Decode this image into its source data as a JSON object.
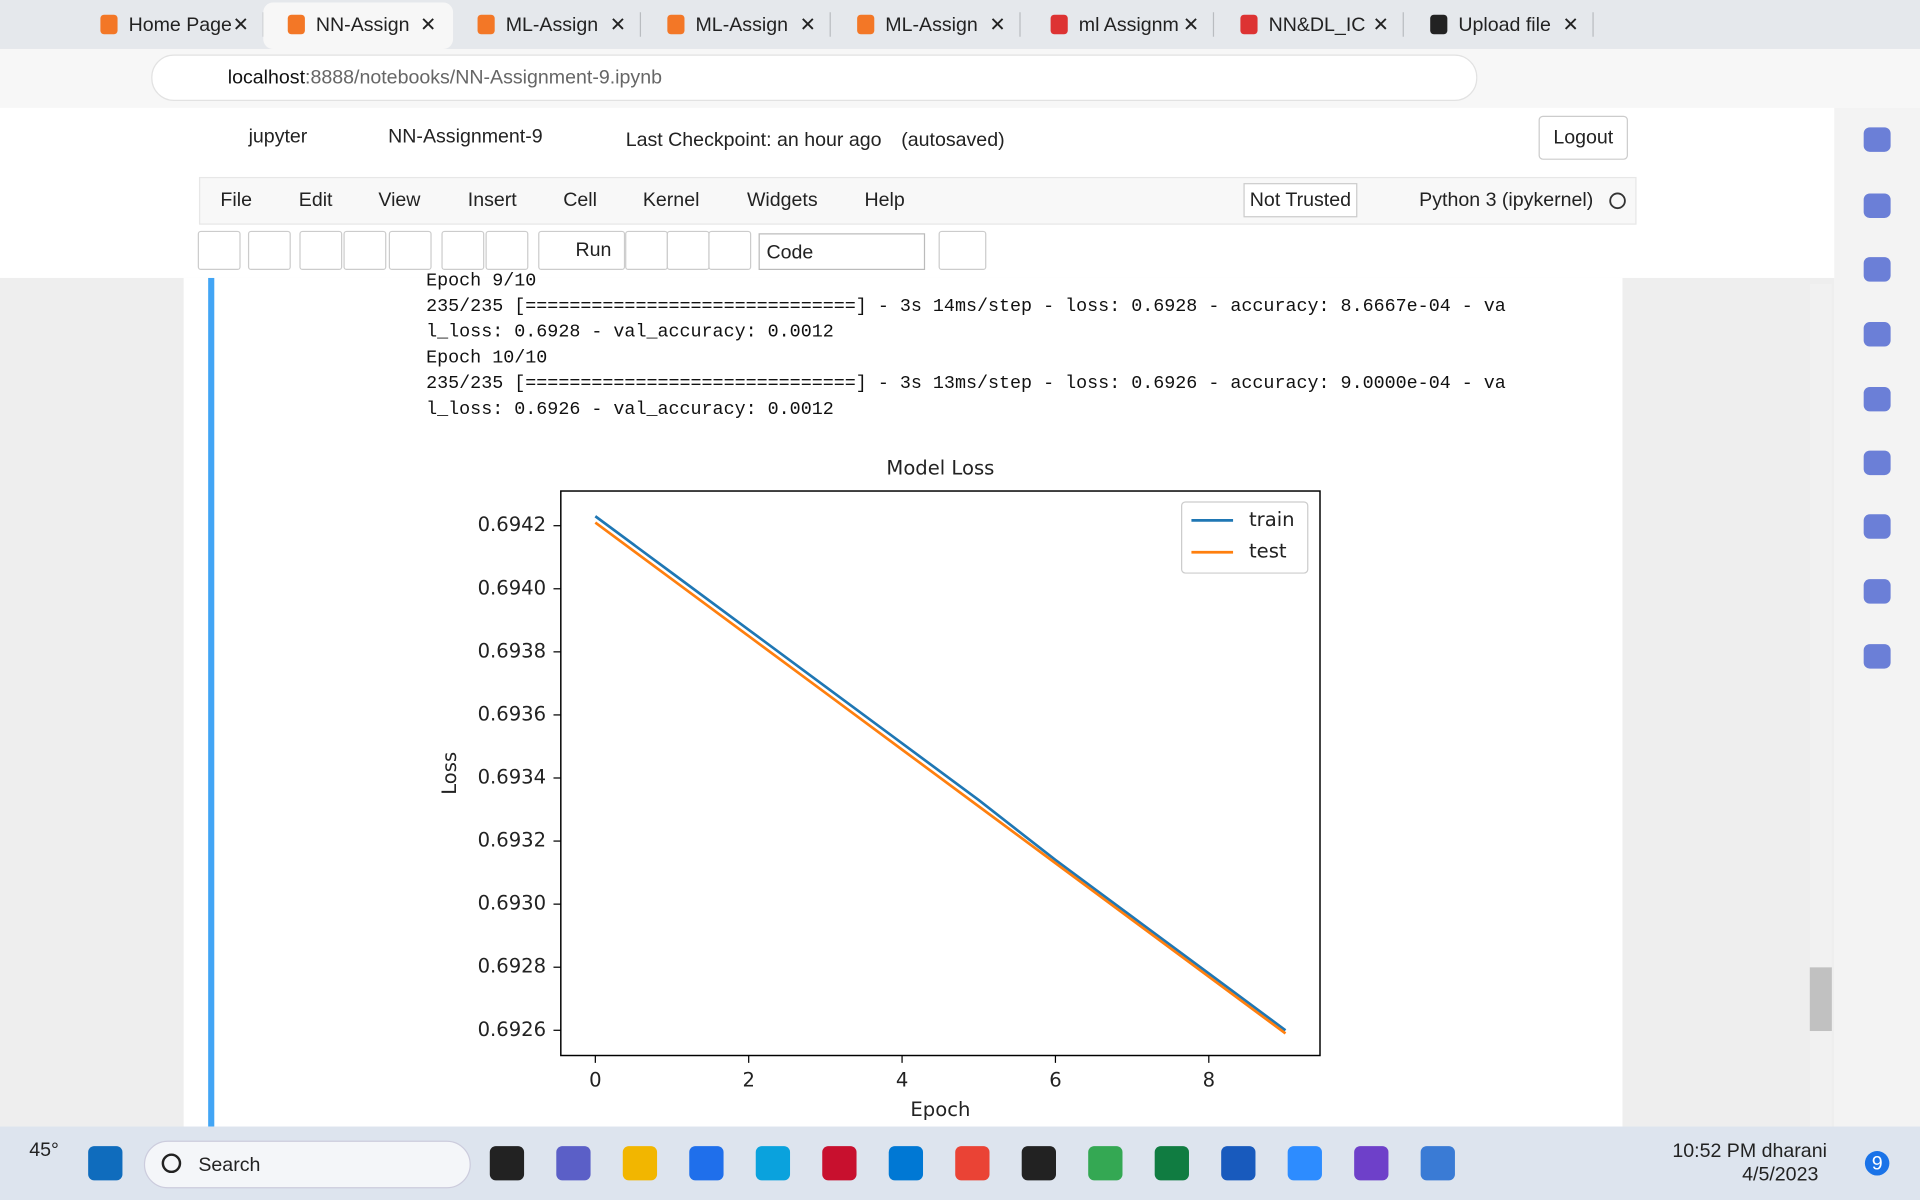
{
  "browser": {
    "tabs": [
      "Home Page",
      "NN-Assign",
      "ML-Assign",
      "ML-Assign",
      "ML-Assign",
      "ml Assignm",
      "NN&DL_IC",
      "Upload file"
    ],
    "url_host": "localhost",
    "url_path": ":8888/notebooks/NN-Assignment-9.ipynb"
  },
  "notebook": {
    "logo": "jupyter",
    "name": "NN-Assignment-9",
    "checkpoint": "Last Checkpoint: an hour ago",
    "autosave": "(autosaved)",
    "logout": "Logout",
    "menu": [
      "File",
      "Edit",
      "View",
      "Insert",
      "Cell",
      "Kernel",
      "Widgets",
      "Help"
    ],
    "trusted": "Not Trusted",
    "kernel": "Python 3 (ipykernel)",
    "run": "Run",
    "cell_type": "Code",
    "output": [
      "Epoch 9/10",
      "235/235 [==============================] - 3s 14ms/step - loss: 0.6928 - accuracy: 8.6667e-04 - va",
      "l_loss: 0.6928 - val_accuracy: 0.0012",
      "Epoch 10/10",
      "235/235 [==============================] - 3s 13ms/step - loss: 0.6926 - accuracy: 9.0000e-04 - va",
      "l_loss: 0.6926 - val_accuracy: 0.0012"
    ]
  },
  "chart_data": {
    "type": "line",
    "title": "Model Loss",
    "x_label": "Epoch",
    "y_label": "Loss",
    "x": [
      0,
      1,
      2,
      3,
      4,
      5,
      6,
      7,
      8,
      9
    ],
    "series": [
      {
        "name": "train",
        "color": "#1f77b4",
        "values": [
          0.69423,
          0.69405,
          0.69387,
          0.69369,
          0.69351,
          0.69333,
          0.69314,
          0.69296,
          0.69278,
          0.6926
        ]
      },
      {
        "name": "test",
        "color": "#ff7f0e",
        "values": [
          0.69421,
          0.69403,
          0.69385,
          0.69367,
          0.69349,
          0.69331,
          0.69313,
          0.69295,
          0.69277,
          0.69259
        ]
      }
    ],
    "xlim": [
      -0.45,
      9.45
    ],
    "ylim": [
      0.69252,
      0.69431
    ],
    "xticks": [
      0,
      2,
      4,
      6,
      8
    ],
    "yticks": [
      0.6926,
      0.6928,
      {
        "value": 0.693,
        "label": "0.6930"
      },
      0.6932,
      0.6934,
      0.6936,
      0.6938,
      {
        "value": 0.694,
        "label": "0.6940"
      },
      0.6942
    ],
    "legend": "upper right"
  },
  "taskbar": {
    "weather": "45°",
    "search": "Search",
    "time": "10:52 PM",
    "user": "dharani",
    "date": "4/5/2023",
    "badge": "9"
  }
}
